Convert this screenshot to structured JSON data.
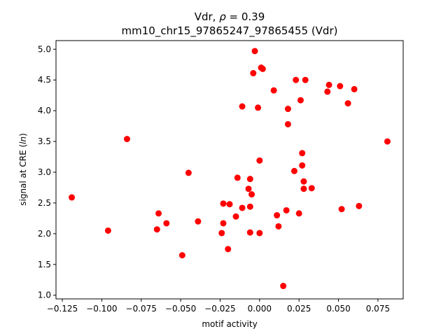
{
  "chart_data": {
    "type": "scatter",
    "title_line1_prefix": "Vdr, ",
    "title_rho_symbol": "ρ",
    "title_rho_suffix": " = 0.39",
    "title_line2": "mm10_chr15_97865247_97865455 (Vdr)",
    "xlabel": "motif activity",
    "ylabel_prefix": "signal at CRE (",
    "ylabel_italic": "ln",
    "ylabel_suffix": ")",
    "xlim": [
      -0.129,
      0.091
    ],
    "ylim": [
      0.94,
      5.14
    ],
    "xticks": [
      -0.125,
      -0.1,
      -0.075,
      -0.05,
      -0.025,
      0.0,
      0.025,
      0.05,
      0.075
    ],
    "xtick_labels": [
      "−0.125",
      "−0.100",
      "−0.075",
      "−0.050",
      "−0.025",
      "0.000",
      "0.025",
      "0.050",
      "0.075"
    ],
    "yticks": [
      1.0,
      1.5,
      2.0,
      2.5,
      3.0,
      3.5,
      4.0,
      4.5,
      5.0
    ],
    "ytick_labels": [
      "1.0",
      "1.5",
      "2.0",
      "2.5",
      "3.0",
      "3.5",
      "4.0",
      "4.5",
      "5.0"
    ],
    "marker_color": "#ff0000",
    "grid": false,
    "points": [
      [
        -0.119,
        2.59
      ],
      [
        -0.096,
        2.05
      ],
      [
        -0.084,
        3.54
      ],
      [
        -0.065,
        2.07
      ],
      [
        -0.064,
        2.33
      ],
      [
        -0.059,
        2.17
      ],
      [
        -0.049,
        1.65
      ],
      [
        -0.045,
        2.99
      ],
      [
        -0.039,
        2.2
      ],
      [
        -0.024,
        2.01
      ],
      [
        -0.023,
        2.17
      ],
      [
        -0.023,
        2.49
      ],
      [
        -0.02,
        1.75
      ],
      [
        -0.019,
        2.48
      ],
      [
        -0.015,
        2.28
      ],
      [
        -0.014,
        2.91
      ],
      [
        -0.011,
        2.42
      ],
      [
        -0.011,
        4.07
      ],
      [
        -0.007,
        2.73
      ],
      [
        -0.006,
        2.44
      ],
      [
        -0.006,
        2.02
      ],
      [
        -0.006,
        2.89
      ],
      [
        -0.005,
        2.64
      ],
      [
        -0.004,
        4.61
      ],
      [
        -0.003,
        4.97
      ],
      [
        -0.001,
        4.05
      ],
      [
        0.0,
        2.01
      ],
      [
        0.0,
        3.19
      ],
      [
        0.001,
        4.7
      ],
      [
        0.002,
        4.68
      ],
      [
        0.009,
        4.33
      ],
      [
        0.011,
        2.3
      ],
      [
        0.012,
        2.12
      ],
      [
        0.015,
        1.15
      ],
      [
        0.017,
        2.38
      ],
      [
        0.018,
        4.03
      ],
      [
        0.018,
        3.78
      ],
      [
        0.022,
        3.02
      ],
      [
        0.023,
        4.5
      ],
      [
        0.025,
        2.33
      ],
      [
        0.026,
        4.17
      ],
      [
        0.027,
        3.31
      ],
      [
        0.027,
        3.11
      ],
      [
        0.028,
        2.85
      ],
      [
        0.028,
        2.73
      ],
      [
        0.029,
        4.5
      ],
      [
        0.033,
        2.74
      ],
      [
        0.043,
        4.31
      ],
      [
        0.044,
        4.42
      ],
      [
        0.051,
        4.4
      ],
      [
        0.052,
        2.4
      ],
      [
        0.056,
        4.12
      ],
      [
        0.06,
        4.35
      ],
      [
        0.063,
        2.45
      ],
      [
        0.081,
        3.5
      ]
    ]
  }
}
